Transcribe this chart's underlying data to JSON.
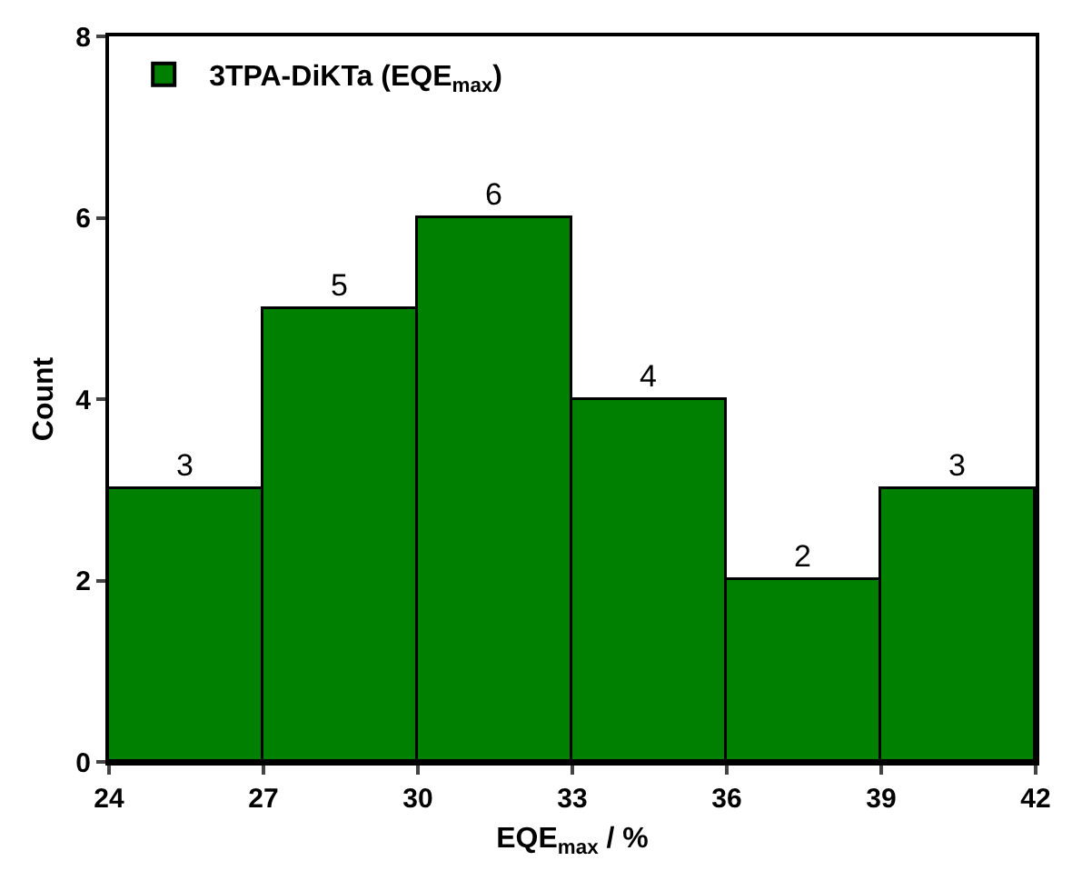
{
  "chart_data": {
    "type": "histogram",
    "xlabel": "EQE$_{max}$ / %",
    "ylabel": "Count",
    "bins": [
      24,
      27,
      30,
      33,
      36,
      39,
      42
    ],
    "series": [
      {
        "name": "3TPA-DiKTa (EQE$_{max}$)",
        "color": "#008000",
        "values": [
          3,
          5,
          6,
          4,
          2,
          3
        ]
      }
    ],
    "xlim": [
      24,
      42
    ],
    "xticks": [
      24,
      27,
      30,
      33,
      36,
      39,
      42
    ],
    "ylim": [
      0,
      8
    ],
    "yticks": [
      0,
      2,
      4,
      6,
      8
    ],
    "data_labels": true,
    "legend": "top left"
  }
}
